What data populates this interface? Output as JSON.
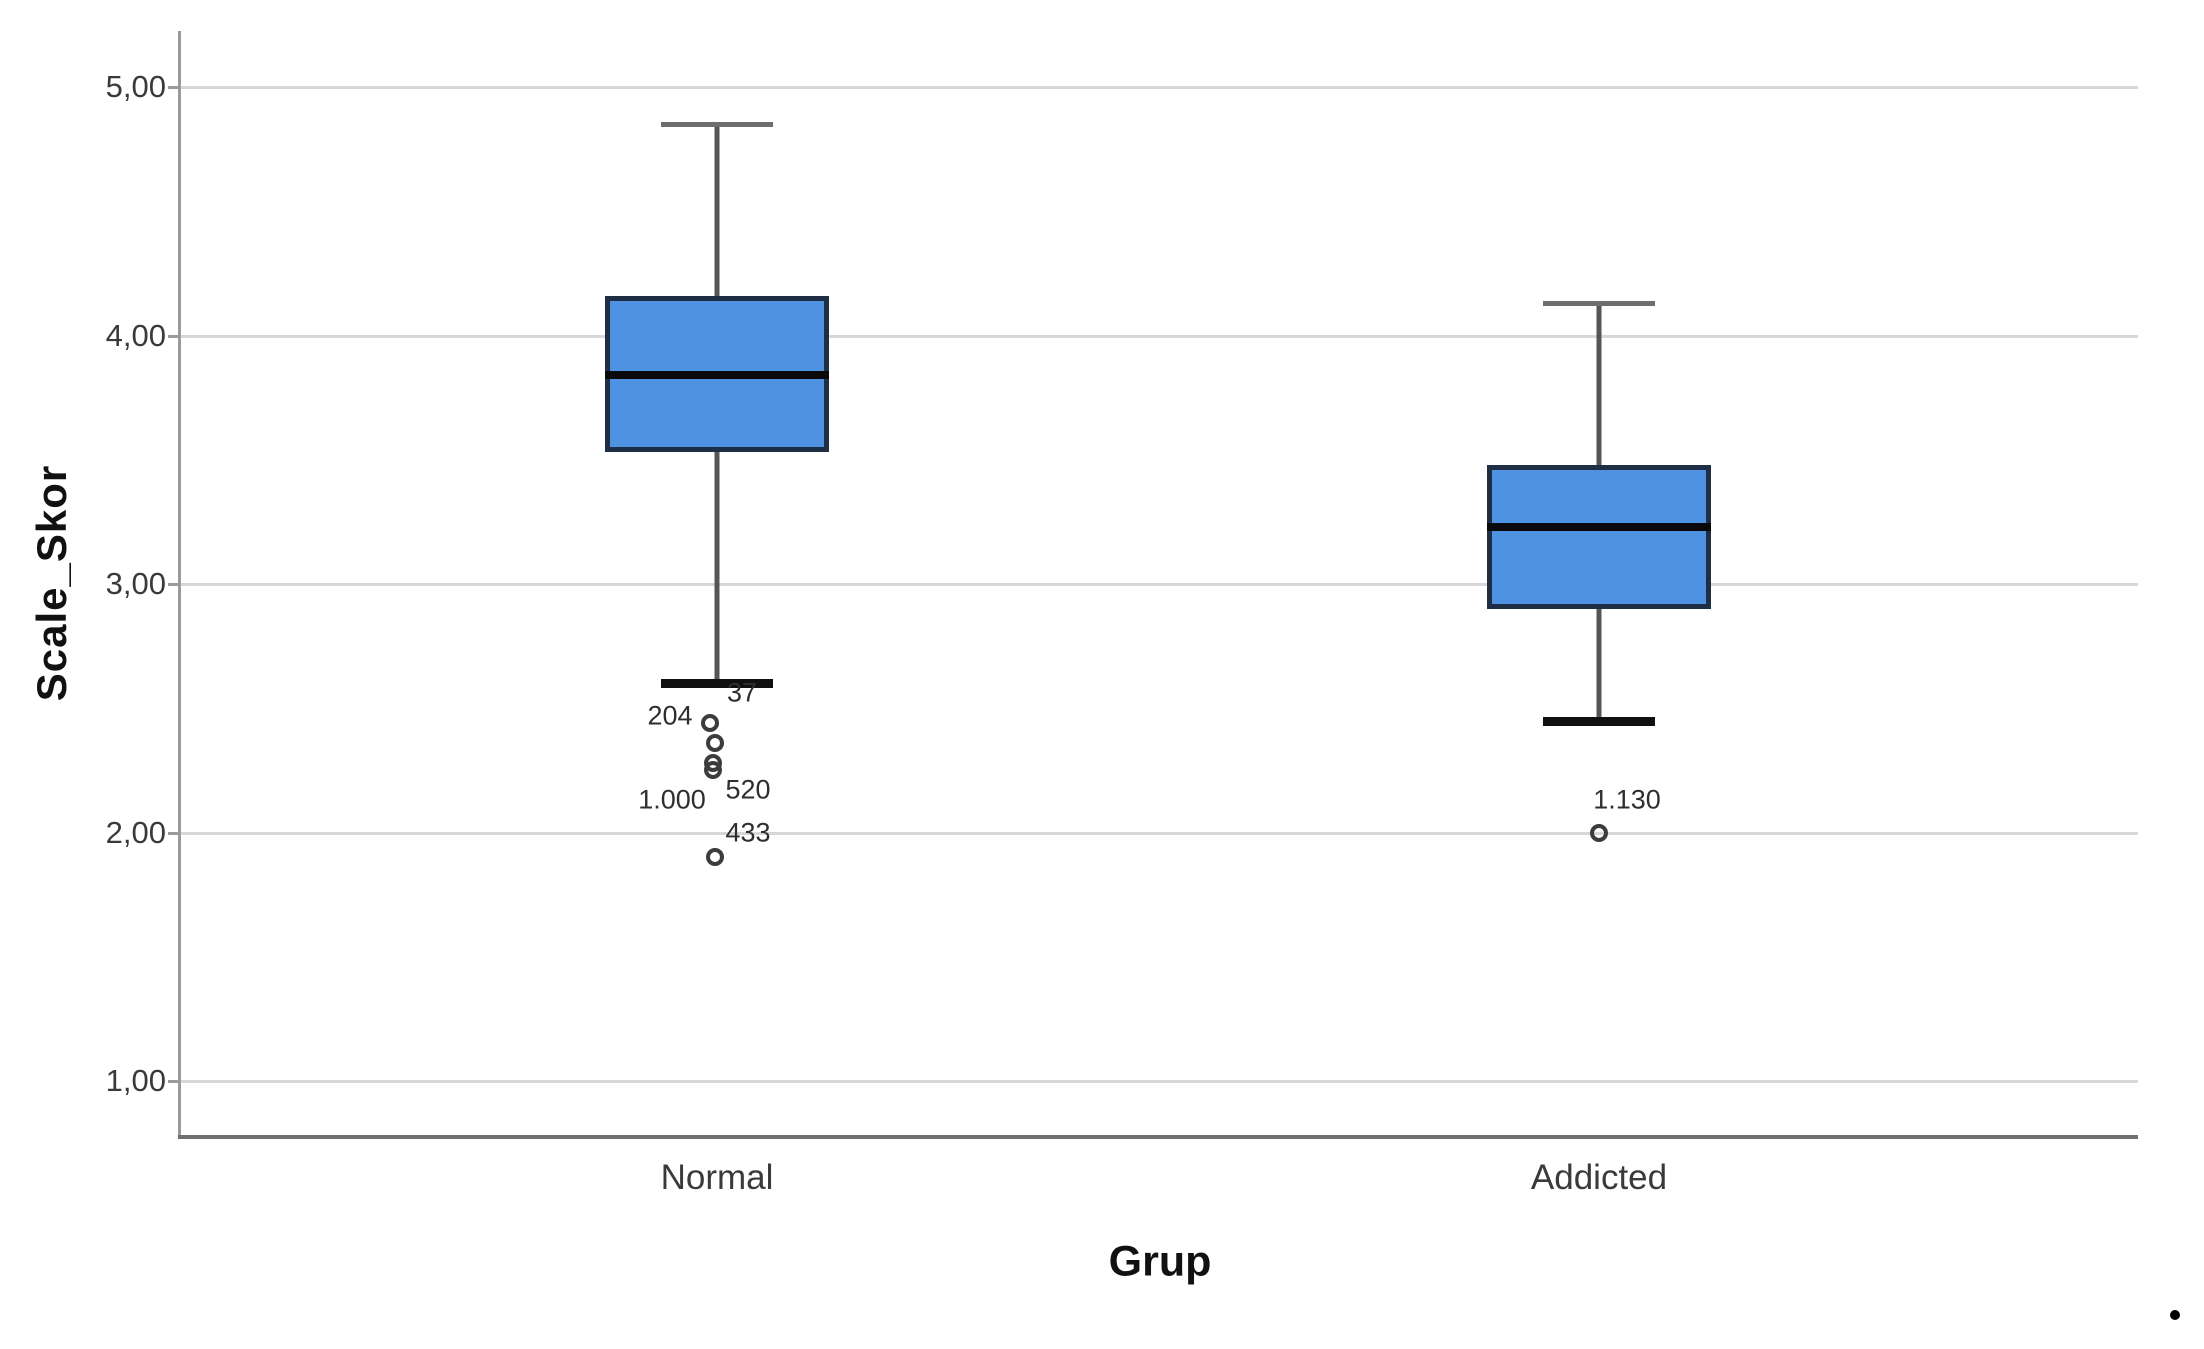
{
  "figure": {
    "background": "#ffffff",
    "period_text": "."
  },
  "chart_data": {
    "type": "boxplot",
    "title": "",
    "xlabel": "Grup",
    "ylabel": "Scale_Skor",
    "ylim": [
      0.78,
      5.22
    ],
    "grid": "horizontal",
    "legend": "none",
    "yticks": [
      {
        "label": "1,00",
        "value": 1.0
      },
      {
        "label": "2,00",
        "value": 2.0
      },
      {
        "label": "3,00",
        "value": 3.0
      },
      {
        "label": "4,00",
        "value": 4.0
      },
      {
        "label": "5,00",
        "value": 5.0
      }
    ],
    "categories": [
      "Normal",
      "Addicted"
    ],
    "series": [
      {
        "category": "Normal",
        "whisker_low": 2.6,
        "q1": 3.53,
        "median": 3.84,
        "q3": 4.16,
        "whisker_high": 4.85,
        "outliers": [
          {
            "value": 2.44,
            "dx": -7
          },
          {
            "value": 2.36,
            "dx": -2
          },
          {
            "value": 2.28,
            "dx": -4
          },
          {
            "value": 2.25,
            "dx": -4
          },
          {
            "value": 1.9,
            "dx": -2
          }
        ],
        "outlier_labels": [
          {
            "text": "37",
            "value": 2.56,
            "dx": 25
          },
          {
            "text": "204",
            "value": 2.47,
            "dx": -47
          },
          {
            "text": "520",
            "value": 2.17,
            "dx": 31
          },
          {
            "text": "1.000",
            "value": 2.13,
            "dx": -45
          },
          {
            "text": "433",
            "value": 2.0,
            "dx": 31
          }
        ]
      },
      {
        "category": "Addicted",
        "whisker_low": 2.45,
        "q1": 2.9,
        "median": 3.23,
        "q3": 3.48,
        "whisker_high": 4.13,
        "outliers": [
          {
            "value": 2.0,
            "dx": 0
          }
        ],
        "outlier_labels": [
          {
            "text": "1.130",
            "value": 2.13,
            "dx": 28
          }
        ]
      }
    ],
    "colors": {
      "box_fill": "#4f92e2",
      "box_border": "#1e2f45",
      "median": "#0a0a0a",
      "whisker": "#555555",
      "cap_top": "#6e6e6e",
      "cap_bottom": "#101010",
      "gridline": "#d7d7d7",
      "axis": "#9a9a9a",
      "text": "#3a3a3a"
    }
  }
}
